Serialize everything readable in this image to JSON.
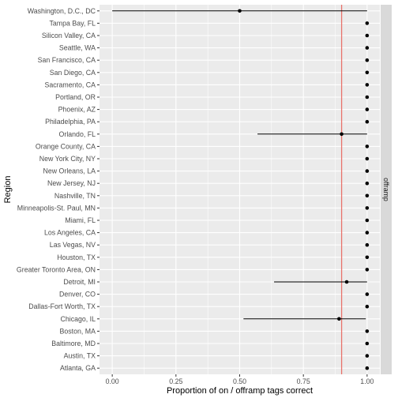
{
  "chart_data": {
    "type": "scatter",
    "xlabel": "Proportion of on / offramp tags correct",
    "ylabel": "Region",
    "facet_label": "offramp",
    "xlim": [
      -0.05,
      1.05
    ],
    "x_ticks": [
      0,
      0.25,
      0.5,
      0.75,
      1
    ],
    "x_tick_labels": [
      "0.00",
      "0.25",
      "0.50",
      "0.75",
      "1.00"
    ],
    "reference_line": 0.9,
    "grid": true,
    "colors": {
      "panel_bg": "#ebebeb",
      "grid": "#ffffff",
      "strip_bg": "#d9d9d9",
      "point": "#000000",
      "reference_line": "#e8736c"
    },
    "categories": [
      "Washington, D.C., DC",
      "Tampa Bay, FL",
      "Silicon Valley, CA",
      "Seattle, WA",
      "San Francisco, CA",
      "San Diego, CA",
      "Sacramento, CA",
      "Portland, OR",
      "Phoenix, AZ",
      "Philadelphia, PA",
      "Orlando, FL",
      "Orange County, CA",
      "New York City, NY",
      "New Orleans, LA",
      "New Jersey, NJ",
      "Nashville, TN",
      "Minneapolis-St. Paul, MN",
      "Miami, FL",
      "Los Angeles, CA",
      "Las Vegas, NV",
      "Houston, TX",
      "Greater Toronto Area, ON",
      "Detroit, MI",
      "Denver, CO",
      "Dallas-Fort Worth, TX",
      "Chicago, IL",
      "Boston, MA",
      "Baltimore, MD",
      "Austin, TX",
      "Atlanta, GA"
    ],
    "values": [
      0.5,
      1,
      1,
      1,
      1,
      1,
      1,
      1,
      1,
      1,
      0.9,
      1,
      1,
      1,
      1,
      1,
      1,
      1,
      1,
      1,
      1,
      1,
      0.92,
      1,
      1,
      0.89,
      1,
      1,
      1,
      1
    ],
    "lower": [
      0.0,
      null,
      null,
      null,
      null,
      null,
      null,
      null,
      null,
      null,
      0.57,
      null,
      null,
      null,
      null,
      null,
      null,
      null,
      null,
      null,
      null,
      null,
      0.635,
      null,
      null,
      0.515,
      null,
      null,
      null,
      null
    ],
    "upper": [
      1.0,
      null,
      null,
      null,
      null,
      null,
      null,
      null,
      null,
      null,
      1.0,
      null,
      null,
      null,
      null,
      null,
      null,
      null,
      null,
      null,
      null,
      null,
      1.0,
      null,
      null,
      0.995,
      null,
      null,
      null,
      null
    ]
  }
}
